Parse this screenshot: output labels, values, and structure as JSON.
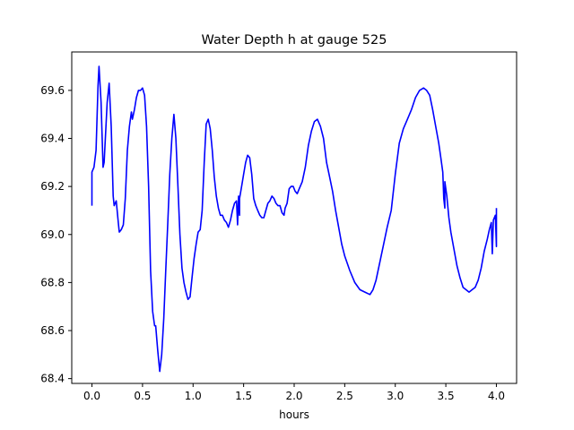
{
  "chart_data": {
    "type": "line",
    "title": "Water Depth h at gauge 525",
    "xlabel": "hours",
    "ylabel": "",
    "xlim": [
      -0.2,
      4.2
    ],
    "ylim": [
      68.38,
      69.76
    ],
    "xticks": [
      0.0,
      0.5,
      1.0,
      1.5,
      2.0,
      2.5,
      3.0,
      3.5,
      4.0
    ],
    "xtick_labels": [
      "0.0",
      "0.5",
      "1.0",
      "1.5",
      "2.0",
      "2.5",
      "3.0",
      "3.5",
      "4.0"
    ],
    "yticks": [
      68.4,
      68.6,
      68.8,
      69.0,
      69.2,
      69.4,
      69.6
    ],
    "ytick_labels": [
      "68.4",
      "68.6",
      "68.8",
      "69.0",
      "69.2",
      "69.4",
      "69.6"
    ],
    "grid": false,
    "series": [
      {
        "name": "",
        "color": "#0000ff",
        "points": [
          [
            0.0,
            69.12
          ],
          [
            0.0,
            69.26
          ],
          [
            0.02,
            69.28
          ],
          [
            0.04,
            69.35
          ],
          [
            0.06,
            69.62
          ],
          [
            0.07,
            69.7
          ],
          [
            0.09,
            69.55
          ],
          [
            0.11,
            69.28
          ],
          [
            0.12,
            69.3
          ],
          [
            0.15,
            69.55
          ],
          [
            0.17,
            69.63
          ],
          [
            0.19,
            69.45
          ],
          [
            0.21,
            69.16
          ],
          [
            0.22,
            69.12
          ],
          [
            0.24,
            69.14
          ],
          [
            0.26,
            69.05
          ],
          [
            0.27,
            69.01
          ],
          [
            0.29,
            69.02
          ],
          [
            0.31,
            69.04
          ],
          [
            0.33,
            69.15
          ],
          [
            0.35,
            69.35
          ],
          [
            0.37,
            69.45
          ],
          [
            0.39,
            69.51
          ],
          [
            0.4,
            69.48
          ],
          [
            0.42,
            69.52
          ],
          [
            0.44,
            69.57
          ],
          [
            0.46,
            69.6
          ],
          [
            0.48,
            69.6
          ],
          [
            0.5,
            69.61
          ],
          [
            0.52,
            69.58
          ],
          [
            0.54,
            69.45
          ],
          [
            0.56,
            69.2
          ],
          [
            0.58,
            68.85
          ],
          [
            0.6,
            68.68
          ],
          [
            0.62,
            68.62
          ],
          [
            0.63,
            68.62
          ],
          [
            0.65,
            68.52
          ],
          [
            0.67,
            68.43
          ],
          [
            0.69,
            68.5
          ],
          [
            0.71,
            68.65
          ],
          [
            0.73,
            68.85
          ],
          [
            0.75,
            69.05
          ],
          [
            0.77,
            69.25
          ],
          [
            0.79,
            69.4
          ],
          [
            0.81,
            69.5
          ],
          [
            0.83,
            69.4
          ],
          [
            0.85,
            69.2
          ],
          [
            0.87,
            69.0
          ],
          [
            0.89,
            68.86
          ],
          [
            0.91,
            68.8
          ],
          [
            0.93,
            68.76
          ],
          [
            0.95,
            68.73
          ],
          [
            0.97,
            68.74
          ],
          [
            0.99,
            68.82
          ],
          [
            1.01,
            68.9
          ],
          [
            1.03,
            68.96
          ],
          [
            1.05,
            69.01
          ],
          [
            1.07,
            69.02
          ],
          [
            1.09,
            69.1
          ],
          [
            1.11,
            69.3
          ],
          [
            1.13,
            69.46
          ],
          [
            1.15,
            69.48
          ],
          [
            1.17,
            69.44
          ],
          [
            1.19,
            69.35
          ],
          [
            1.21,
            69.24
          ],
          [
            1.23,
            69.16
          ],
          [
            1.25,
            69.11
          ],
          [
            1.27,
            69.08
          ],
          [
            1.29,
            69.08
          ],
          [
            1.31,
            69.06
          ],
          [
            1.33,
            69.05
          ],
          [
            1.35,
            69.03
          ],
          [
            1.37,
            69.06
          ],
          [
            1.39,
            69.1
          ],
          [
            1.41,
            69.13
          ],
          [
            1.43,
            69.14
          ],
          [
            1.44,
            69.04
          ],
          [
            1.45,
            69.16
          ],
          [
            1.46,
            69.08
          ],
          [
            1.46,
            69.15
          ],
          [
            1.48,
            69.2
          ],
          [
            1.5,
            69.25
          ],
          [
            1.52,
            69.3
          ],
          [
            1.54,
            69.33
          ],
          [
            1.56,
            69.32
          ],
          [
            1.58,
            69.25
          ],
          [
            1.6,
            69.15
          ],
          [
            1.62,
            69.12
          ],
          [
            1.64,
            69.1
          ],
          [
            1.66,
            69.08
          ],
          [
            1.68,
            69.07
          ],
          [
            1.7,
            69.07
          ],
          [
            1.72,
            69.1
          ],
          [
            1.74,
            69.13
          ],
          [
            1.76,
            69.14
          ],
          [
            1.78,
            69.16
          ],
          [
            1.8,
            69.15
          ],
          [
            1.82,
            69.13
          ],
          [
            1.84,
            69.12
          ],
          [
            1.86,
            69.12
          ],
          [
            1.88,
            69.09
          ],
          [
            1.9,
            69.08
          ],
          [
            1.91,
            69.11
          ],
          [
            1.93,
            69.13
          ],
          [
            1.95,
            69.19
          ],
          [
            1.97,
            69.2
          ],
          [
            1.99,
            69.2
          ],
          [
            2.01,
            69.18
          ],
          [
            2.03,
            69.17
          ],
          [
            2.05,
            69.19
          ],
          [
            2.08,
            69.22
          ],
          [
            2.11,
            69.28
          ],
          [
            2.14,
            69.37
          ],
          [
            2.17,
            69.43
          ],
          [
            2.2,
            69.47
          ],
          [
            2.23,
            69.48
          ],
          [
            2.26,
            69.45
          ],
          [
            2.29,
            69.4
          ],
          [
            2.32,
            69.3
          ],
          [
            2.35,
            69.24
          ],
          [
            2.38,
            69.18
          ],
          [
            2.41,
            69.1
          ],
          [
            2.44,
            69.03
          ],
          [
            2.47,
            68.96
          ],
          [
            2.5,
            68.91
          ],
          [
            2.55,
            68.85
          ],
          [
            2.6,
            68.8
          ],
          [
            2.65,
            68.77
          ],
          [
            2.7,
            68.76
          ],
          [
            2.75,
            68.75
          ],
          [
            2.78,
            68.77
          ],
          [
            2.81,
            68.81
          ],
          [
            2.84,
            68.87
          ],
          [
            2.88,
            68.95
          ],
          [
            2.92,
            69.03
          ],
          [
            2.96,
            69.1
          ],
          [
            3.0,
            69.25
          ],
          [
            3.04,
            69.38
          ],
          [
            3.08,
            69.44
          ],
          [
            3.12,
            69.48
          ],
          [
            3.16,
            69.52
          ],
          [
            3.2,
            69.57
          ],
          [
            3.24,
            69.6
          ],
          [
            3.28,
            69.61
          ],
          [
            3.31,
            69.6
          ],
          [
            3.34,
            69.58
          ],
          [
            3.37,
            69.52
          ],
          [
            3.4,
            69.45
          ],
          [
            3.43,
            69.38
          ],
          [
            3.45,
            69.32
          ],
          [
            3.47,
            69.26
          ],
          [
            3.48,
            69.15
          ],
          [
            3.49,
            69.11
          ],
          [
            3.49,
            69.22
          ],
          [
            3.51,
            69.16
          ],
          [
            3.53,
            69.07
          ],
          [
            3.55,
            69.01
          ],
          [
            3.58,
            68.94
          ],
          [
            3.61,
            68.87
          ],
          [
            3.64,
            68.82
          ],
          [
            3.67,
            68.78
          ],
          [
            3.7,
            68.77
          ],
          [
            3.73,
            68.76
          ],
          [
            3.76,
            68.77
          ],
          [
            3.79,
            68.78
          ],
          [
            3.82,
            68.81
          ],
          [
            3.85,
            68.86
          ],
          [
            3.88,
            68.93
          ],
          [
            3.91,
            68.98
          ],
          [
            3.93,
            69.02
          ],
          [
            3.95,
            69.05
          ],
          [
            3.96,
            68.92
          ],
          [
            3.97,
            69.06
          ],
          [
            3.99,
            69.08
          ],
          [
            4.0,
            68.95
          ],
          [
            4.0,
            69.11
          ]
        ]
      }
    ]
  }
}
